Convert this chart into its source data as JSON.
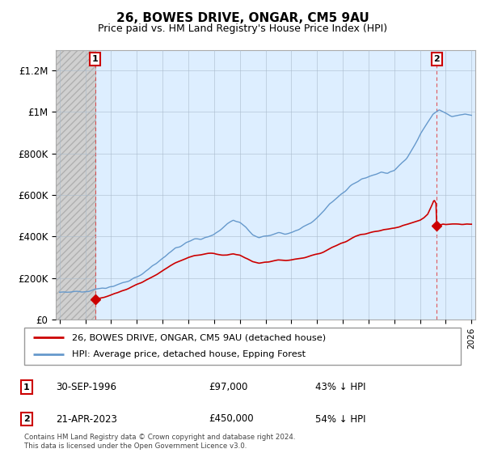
{
  "title": "26, BOWES DRIVE, ONGAR, CM5 9AU",
  "subtitle": "Price paid vs. HM Land Registry's House Price Index (HPI)",
  "legend_line1": "26, BOWES DRIVE, ONGAR, CM5 9AU (detached house)",
  "legend_line2": "HPI: Average price, detached house, Epping Forest",
  "footer": "Contains HM Land Registry data © Crown copyright and database right 2024.\nThis data is licensed under the Open Government Licence v3.0.",
  "annotation1_label": "1",
  "annotation1_date": "30-SEP-1996",
  "annotation1_price": "£97,000",
  "annotation1_hpi": "43% ↓ HPI",
  "annotation2_label": "2",
  "annotation2_date": "21-APR-2023",
  "annotation2_price": "£450,000",
  "annotation2_hpi": "54% ↓ HPI",
  "sale1_x": 1996.75,
  "sale1_y": 97000,
  "sale2_x": 2023.3,
  "sale2_y": 450000,
  "hatch_start": 1994.0,
  "hatch_end": 1996.75,
  "xmin": 1993.7,
  "xmax": 2026.3,
  "ymin": 0,
  "ymax": 1300000,
  "yticks": [
    0,
    200000,
    400000,
    600000,
    800000,
    1000000,
    1200000
  ],
  "ytick_labels": [
    "£0",
    "£200K",
    "£400K",
    "£600K",
    "£800K",
    "£1M",
    "£1.2M"
  ],
  "price_color": "#cc0000",
  "hpi_color": "#6699cc",
  "chart_bg": "#ddeeff",
  "hatch_color": "#c8c8c8",
  "background_color": "#ffffff",
  "grid_color": "#aabbcc"
}
